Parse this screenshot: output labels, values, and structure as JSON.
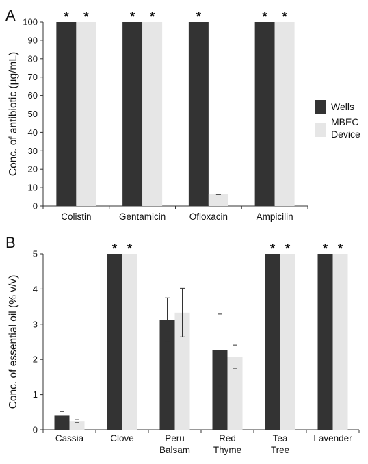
{
  "chart_data": [
    {
      "panel": "A",
      "type": "bar",
      "ylabel": "Conc. of antibiotic (µg/mL)",
      "ylim": [
        0,
        100
      ],
      "yticks": [
        0,
        10,
        20,
        30,
        40,
        50,
        60,
        70,
        80,
        90,
        100
      ],
      "grid": false,
      "legend": "right",
      "categories": [
        "Colistin",
        "Gentamicin",
        "Ofloxacin",
        "Ampicilin"
      ],
      "series": [
        {
          "name": "Wells",
          "color": "#333333",
          "values": [
            100,
            100,
            100,
            100
          ],
          "errors": [
            0,
            0,
            0,
            0
          ],
          "markers": [
            "*",
            "*",
            "*",
            "*"
          ]
        },
        {
          "name": "MBEC Device",
          "color": "#e6e6e6",
          "values": [
            100,
            100,
            6.3,
            100
          ],
          "errors": [
            0,
            0,
            0.1,
            0
          ],
          "markers": [
            "*",
            "*",
            "",
            "*"
          ]
        }
      ]
    },
    {
      "panel": "B",
      "type": "bar",
      "ylabel": "Conc. of essential oil (% v/v)",
      "ylim": [
        0,
        5
      ],
      "yticks": [
        0,
        1,
        2,
        3,
        4,
        5
      ],
      "grid": false,
      "categories": [
        "Cassia",
        "Clove",
        "Peru Balsam",
        "Red Thyme",
        "Tea Tree",
        "Lavender"
      ],
      "series": [
        {
          "name": "Wells",
          "color": "#333333",
          "values": [
            0.4,
            5,
            3.13,
            2.27,
            5,
            5
          ],
          "errors": [
            0.12,
            0,
            0.62,
            1.02,
            0,
            0
          ],
          "markers": [
            "",
            "*",
            "",
            "",
            "*",
            "*"
          ]
        },
        {
          "name": "MBEC Device",
          "color": "#e6e6e6",
          "values": [
            0.25,
            5,
            3.33,
            2.08,
            5,
            5
          ],
          "errors": [
            0.04,
            0,
            0.69,
            0.33,
            0,
            0
          ],
          "markers": [
            "",
            "*",
            "",
            "",
            "*",
            "*"
          ]
        }
      ]
    }
  ],
  "legend": {
    "items": [
      {
        "label_lines": [
          "Wells"
        ],
        "color": "#333333"
      },
      {
        "label_lines": [
          "MBEC",
          "Device"
        ],
        "color": "#e6e6e6"
      }
    ]
  }
}
